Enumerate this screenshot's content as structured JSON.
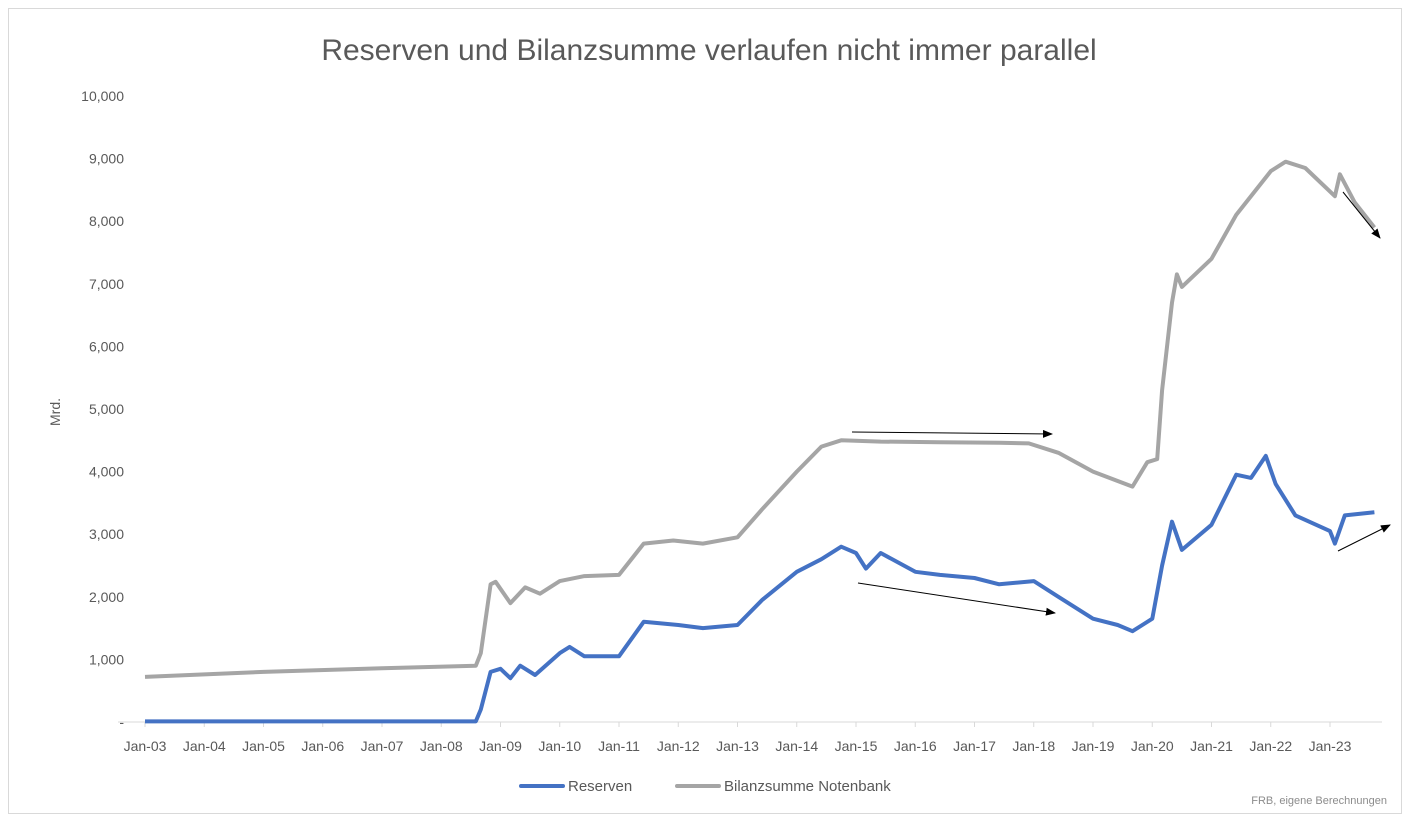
{
  "chart_data": {
    "type": "line",
    "title": "Reserven und Bilanzsumme verlaufen nicht immer parallel",
    "ylabel": "Mrd.",
    "xlabel": "",
    "source": "FRB, eigene Berechnungen",
    "ylim": [
      0,
      10000
    ],
    "yticks": [
      0,
      1000,
      2000,
      3000,
      4000,
      5000,
      6000,
      7000,
      8000,
      9000,
      10000
    ],
    "ytick_labels": [
      "-",
      "1,000",
      "2,000",
      "3,000",
      "4,000",
      "5,000",
      "6,000",
      "7,000",
      "8,000",
      "9,000",
      "10,000"
    ],
    "xtick_labels": [
      "Jan-03",
      "Jan-04",
      "Jan-05",
      "Jan-06",
      "Jan-07",
      "Jan-08",
      "Jan-09",
      "Jan-10",
      "Jan-11",
      "Jan-12",
      "Jan-13",
      "Jan-14",
      "Jan-15",
      "Jan-16",
      "Jan-17",
      "Jan-18",
      "Jan-19",
      "Jan-20",
      "Jan-21",
      "Jan-22",
      "Jan-23"
    ],
    "xlim": [
      "2003-01",
      "2023-11"
    ],
    "grid": false,
    "legend": "bottom",
    "series": [
      {
        "name": "Reserven",
        "color": "#4472C4",
        "points": [
          [
            "2003-01",
            10
          ],
          [
            "2005-01",
            10
          ],
          [
            "2007-01",
            10
          ],
          [
            "2008-08",
            10
          ],
          [
            "2008-09",
            200
          ],
          [
            "2008-11",
            800
          ],
          [
            "2009-01",
            850
          ],
          [
            "2009-03",
            700
          ],
          [
            "2009-05",
            900
          ],
          [
            "2009-08",
            750
          ],
          [
            "2010-01",
            1100
          ],
          [
            "2010-03",
            1200
          ],
          [
            "2010-06",
            1050
          ],
          [
            "2011-01",
            1050
          ],
          [
            "2011-06",
            1600
          ],
          [
            "2012-01",
            1550
          ],
          [
            "2012-06",
            1500
          ],
          [
            "2013-01",
            1550
          ],
          [
            "2013-06",
            1950
          ],
          [
            "2014-01",
            2400
          ],
          [
            "2014-06",
            2600
          ],
          [
            "2014-10",
            2800
          ],
          [
            "2015-01",
            2700
          ],
          [
            "2015-03",
            2450
          ],
          [
            "2015-06",
            2700
          ],
          [
            "2016-01",
            2400
          ],
          [
            "2016-06",
            2350
          ],
          [
            "2017-01",
            2300
          ],
          [
            "2017-06",
            2200
          ],
          [
            "2018-01",
            2250
          ],
          [
            "2018-06",
            2000
          ],
          [
            "2019-01",
            1650
          ],
          [
            "2019-06",
            1550
          ],
          [
            "2019-09",
            1450
          ],
          [
            "2020-01",
            1650
          ],
          [
            "2020-03",
            2500
          ],
          [
            "2020-05",
            3200
          ],
          [
            "2020-07",
            2750
          ],
          [
            "2021-01",
            3150
          ],
          [
            "2021-06",
            3950
          ],
          [
            "2021-09",
            3900
          ],
          [
            "2021-12",
            4250
          ],
          [
            "2022-02",
            3800
          ],
          [
            "2022-06",
            3300
          ],
          [
            "2023-01",
            3050
          ],
          [
            "2023-02",
            2850
          ],
          [
            "2023-04",
            3300
          ],
          [
            "2023-10",
            3350
          ]
        ]
      },
      {
        "name": "Bilanzsumme Notenbank",
        "color": "#A5A5A5",
        "points": [
          [
            "2003-01",
            720
          ],
          [
            "2005-01",
            800
          ],
          [
            "2007-01",
            860
          ],
          [
            "2008-08",
            900
          ],
          [
            "2008-09",
            1100
          ],
          [
            "2008-11",
            2200
          ],
          [
            "2008-12",
            2240
          ],
          [
            "2009-03",
            1900
          ],
          [
            "2009-06",
            2150
          ],
          [
            "2009-09",
            2050
          ],
          [
            "2010-01",
            2250
          ],
          [
            "2010-06",
            2330
          ],
          [
            "2011-01",
            2350
          ],
          [
            "2011-06",
            2850
          ],
          [
            "2011-12",
            2900
          ],
          [
            "2012-06",
            2850
          ],
          [
            "2013-01",
            2950
          ],
          [
            "2013-06",
            3400
          ],
          [
            "2014-01",
            4000
          ],
          [
            "2014-06",
            4400
          ],
          [
            "2014-10",
            4500
          ],
          [
            "2015-06",
            4480
          ],
          [
            "2016-06",
            4470
          ],
          [
            "2017-06",
            4460
          ],
          [
            "2017-12",
            4450
          ],
          [
            "2018-06",
            4300
          ],
          [
            "2019-01",
            4000
          ],
          [
            "2019-09",
            3760
          ],
          [
            "2019-12",
            4150
          ],
          [
            "2020-02",
            4200
          ],
          [
            "2020-03",
            5300
          ],
          [
            "2020-05",
            6700
          ],
          [
            "2020-06",
            7150
          ],
          [
            "2020-07",
            6950
          ],
          [
            "2021-01",
            7400
          ],
          [
            "2021-06",
            8100
          ],
          [
            "2022-01",
            8800
          ],
          [
            "2022-04",
            8950
          ],
          [
            "2022-08",
            8850
          ],
          [
            "2023-02",
            8400
          ],
          [
            "2023-03",
            8750
          ],
          [
            "2023-06",
            8300
          ],
          [
            "2023-10",
            7900
          ]
        ]
      }
    ]
  }
}
